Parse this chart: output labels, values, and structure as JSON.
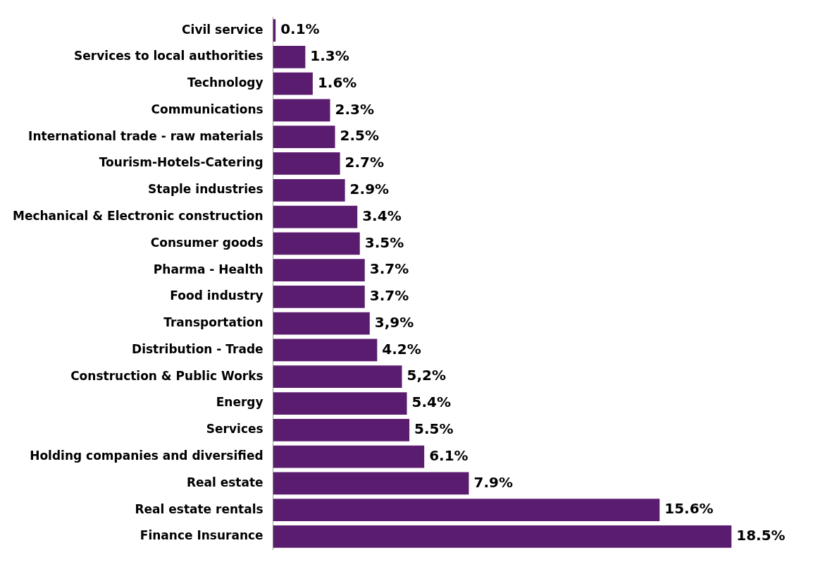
{
  "chart_data": {
    "type": "bar",
    "orientation": "horizontal",
    "color": "#5a1c6e",
    "grid": false,
    "legend": false,
    "tick_labels": "y",
    "categories": [
      "Civil service",
      "Services to local authorities",
      "Technology",
      "Communications",
      "International trade - raw materials",
      "Tourism-Hotels-Catering",
      "Staple industries",
      "Mechanical & Electronic construction",
      "Consumer goods",
      "Pharma - Health",
      "Food industry",
      "Transportation",
      "Distribution - Trade",
      "Construction & Public Works",
      "Energy",
      "Services",
      "Holding companies and diversified",
      "Real estate",
      "Real estate rentals",
      "Finance Insurance"
    ],
    "values": [
      0.1,
      1.3,
      1.6,
      2.3,
      2.5,
      2.7,
      2.9,
      3.4,
      3.5,
      3.7,
      3.7,
      3.9,
      4.2,
      5.2,
      5.4,
      5.5,
      6.1,
      7.9,
      15.6,
      18.5
    ],
    "value_labels": [
      "0.1%",
      "1.3%",
      "1.6%",
      "2.3%",
      "2.5%",
      "2.7%",
      "2.9%",
      "3.4%",
      "3.5%",
      "3.7%",
      "3.7%",
      "3,9%",
      "4.2%",
      "5,2%",
      "5.4%",
      "5.5%",
      "6.1%",
      "7.9%",
      "15.6%",
      "18.5%"
    ]
  }
}
